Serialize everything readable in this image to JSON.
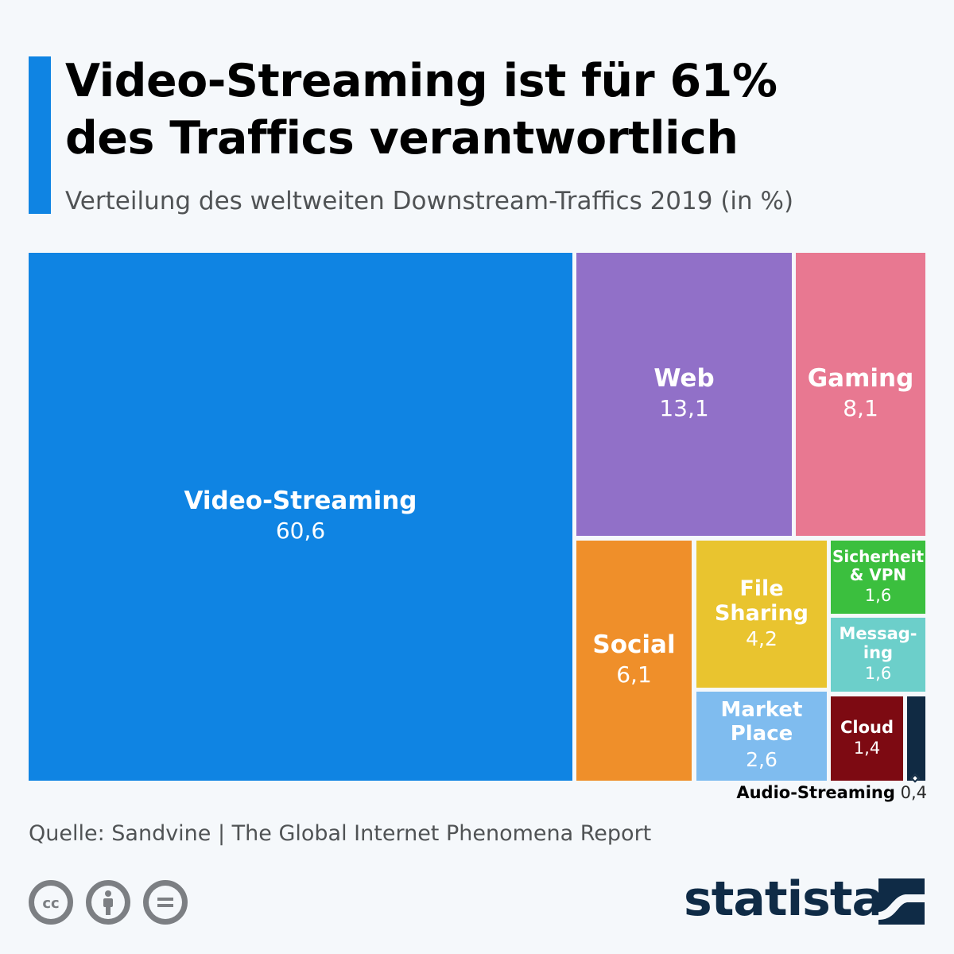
{
  "header": {
    "title_line1": "Video-Streaming ist für 61%",
    "title_line2": "des Traffics verantwortlich",
    "subtitle": "Verteilung des weltweiten Downstream-Traffics 2019 (in %)"
  },
  "chart_data": {
    "type": "treemap",
    "title": "Video-Streaming ist für 61% des Traffics verantwortlich",
    "subtitle": "Verteilung des weltweiten Downstream-Traffics 2019 (in %)",
    "unit": "%",
    "items": [
      {
        "name": "Video-Streaming",
        "label_lines": [
          "Video-Streaming"
        ],
        "value": 60.6,
        "display_value": "60,6",
        "color": "#0f84e3"
      },
      {
        "name": "Web",
        "label_lines": [
          "Web"
        ],
        "value": 13.1,
        "display_value": "13,1",
        "color": "#9170c8"
      },
      {
        "name": "Gaming",
        "label_lines": [
          "Gaming"
        ],
        "value": 8.1,
        "display_value": "8,1",
        "color": "#e87891"
      },
      {
        "name": "Social",
        "label_lines": [
          "Social"
        ],
        "value": 6.1,
        "display_value": "6,1",
        "color": "#ef8f2a"
      },
      {
        "name": "File Sharing",
        "label_lines": [
          "File",
          "Sharing"
        ],
        "value": 4.2,
        "display_value": "4,2",
        "color": "#e9c42f"
      },
      {
        "name": "Market Place",
        "label_lines": [
          "Market",
          "Place"
        ],
        "value": 2.6,
        "display_value": "2,6",
        "color": "#7fbcef"
      },
      {
        "name": "Sicherheit & VPN",
        "label_lines": [
          "Sicherheit",
          "& VPN"
        ],
        "value": 1.6,
        "display_value": "1,6",
        "color": "#3bbf3e"
      },
      {
        "name": "Messaging",
        "label_lines": [
          "Messag-",
          "ing"
        ],
        "value": 1.6,
        "display_value": "1,6",
        "color": "#6ccfca"
      },
      {
        "name": "Cloud",
        "label_lines": [
          "Cloud"
        ],
        "value": 1.4,
        "display_value": "1,4",
        "color": "#7d0a12"
      },
      {
        "name": "Audio-Streaming",
        "label_lines": [],
        "value": 0.4,
        "display_value": "0,4",
        "color": "#102a43"
      }
    ],
    "external_label": {
      "name": "Audio-Streaming",
      "value": "0,4"
    }
  },
  "footer": {
    "source": "Quelle: Sandvine | The Global Internet Phenomena Report",
    "license_icons": [
      "cc-icon",
      "attribution-icon",
      "no-derivatives-icon"
    ],
    "brand": "statista"
  }
}
